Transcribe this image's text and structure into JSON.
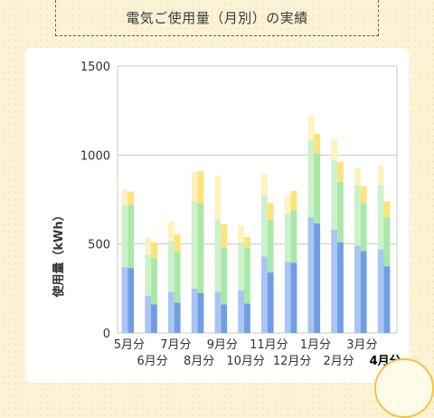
{
  "title": "電気ご使用量（月別）の実績",
  "chart_data": {
    "type": "bar",
    "stacked": true,
    "ylabel": "使用量（kWh）",
    "ylim": [
      0,
      1500
    ],
    "yticks": [
      0,
      500,
      1000,
      1500
    ],
    "grid": true,
    "categories": [
      "5月分",
      "6月分",
      "7月分",
      "8月分",
      "9月分",
      "10月分",
      "11月分",
      "12月分",
      "1月分",
      "2月分",
      "3月分",
      "4月分"
    ],
    "current_month": "4月分",
    "segment_colors": [
      "#6f9de6",
      "#a8e8a8",
      "#fde47a"
    ],
    "faded_segment_colors": [
      "#a9c6f2",
      "#cdf1cd",
      "#fef2bf"
    ],
    "previous_year": [
      [
        370,
        350,
        85
      ],
      [
        210,
        230,
        95
      ],
      [
        230,
        290,
        110
      ],
      [
        250,
        490,
        170
      ],
      [
        230,
        410,
        245
      ],
      [
        240,
        270,
        95
      ],
      [
        430,
        340,
        120
      ],
      [
        400,
        270,
        105
      ],
      [
        650,
        430,
        140
      ],
      [
        580,
        390,
        120
      ],
      [
        490,
        340,
        95
      ],
      [
        470,
        360,
        115
      ]
    ],
    "current_year": [
      [
        365,
        355,
        75
      ],
      [
        160,
        260,
        90
      ],
      [
        170,
        285,
        100
      ],
      [
        225,
        500,
        185
      ],
      [
        160,
        320,
        130
      ],
      [
        165,
        315,
        60
      ],
      [
        340,
        295,
        95
      ],
      [
        395,
        295,
        110
      ],
      [
        615,
        395,
        110
      ],
      [
        510,
        340,
        110
      ],
      [
        460,
        270,
        95
      ],
      [
        375,
        275,
        90
      ]
    ]
  }
}
